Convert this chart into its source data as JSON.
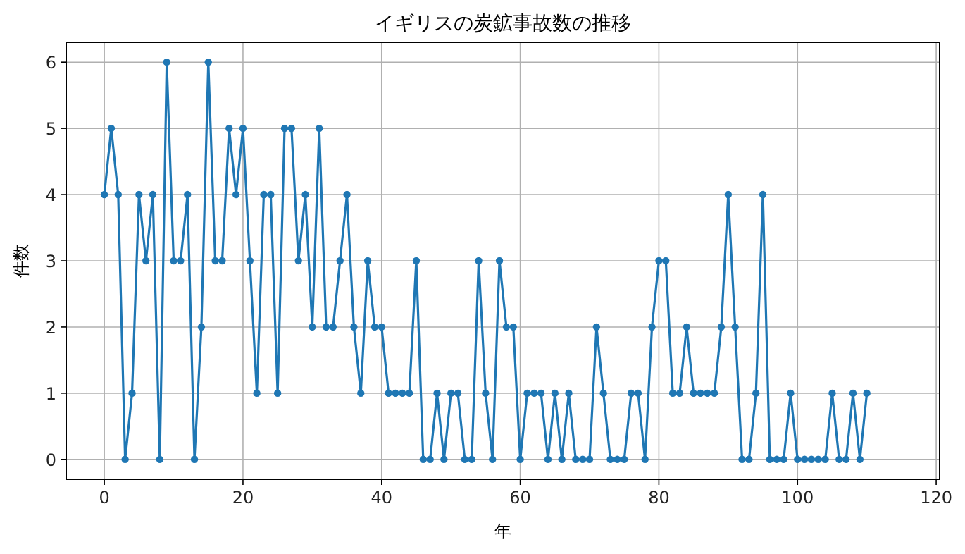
{
  "chart_data": {
    "type": "line",
    "title": "イギリスの炭鉱事故数の推移",
    "xlabel": "年",
    "ylabel": "件数",
    "x": [
      0,
      1,
      2,
      3,
      4,
      5,
      6,
      7,
      8,
      9,
      10,
      11,
      12,
      13,
      14,
      15,
      16,
      17,
      18,
      19,
      20,
      21,
      22,
      23,
      24,
      25,
      26,
      27,
      28,
      29,
      30,
      31,
      32,
      33,
      34,
      35,
      36,
      37,
      38,
      39,
      40,
      41,
      42,
      43,
      44,
      45,
      46,
      47,
      48,
      49,
      50,
      51,
      52,
      53,
      54,
      55,
      56,
      57,
      58,
      59,
      60,
      61,
      62,
      63,
      64,
      65,
      66,
      67,
      68,
      69,
      70,
      71,
      72,
      73,
      74,
      75,
      76,
      77,
      78,
      79,
      80,
      81,
      82,
      83,
      84,
      85,
      86,
      87,
      88,
      89,
      90,
      91,
      92,
      93,
      94,
      95,
      96,
      97,
      98,
      99,
      100,
      101,
      102,
      103,
      104,
      105,
      106,
      107,
      108,
      109,
      110
    ],
    "values": [
      4,
      5,
      4,
      0,
      1,
      4,
      3,
      4,
      0,
      6,
      3,
      3,
      4,
      0,
      2,
      6,
      3,
      3,
      5,
      4,
      5,
      3,
      1,
      4,
      4,
      1,
      5,
      5,
      3,
      4,
      2,
      5,
      2,
      2,
      3,
      4,
      2,
      1,
      3,
      2,
      2,
      1,
      1,
      1,
      1,
      3,
      0,
      0,
      1,
      0,
      1,
      1,
      0,
      0,
      3,
      1,
      0,
      3,
      2,
      2,
      0,
      1,
      1,
      1,
      0,
      1,
      0,
      1,
      0,
      0,
      0,
      2,
      1,
      0,
      0,
      0,
      1,
      1,
      0,
      2,
      3,
      3,
      1,
      1,
      2,
      1,
      1,
      1,
      1,
      2,
      4,
      2,
      0,
      0,
      1,
      4,
      0,
      0,
      0,
      1,
      0,
      0,
      0,
      0,
      0,
      1,
      0,
      0,
      1,
      0,
      1
    ],
    "color": "#1f77b4",
    "marker": "circle",
    "line_style": "solid",
    "grid": true,
    "xlim": [
      -5.5,
      120.5
    ],
    "ylim": [
      -0.3,
      6.3
    ],
    "xticks": [
      0,
      20,
      40,
      60,
      80,
      100,
      120
    ],
    "yticks": [
      0,
      1,
      2,
      3,
      4,
      5,
      6
    ]
  }
}
